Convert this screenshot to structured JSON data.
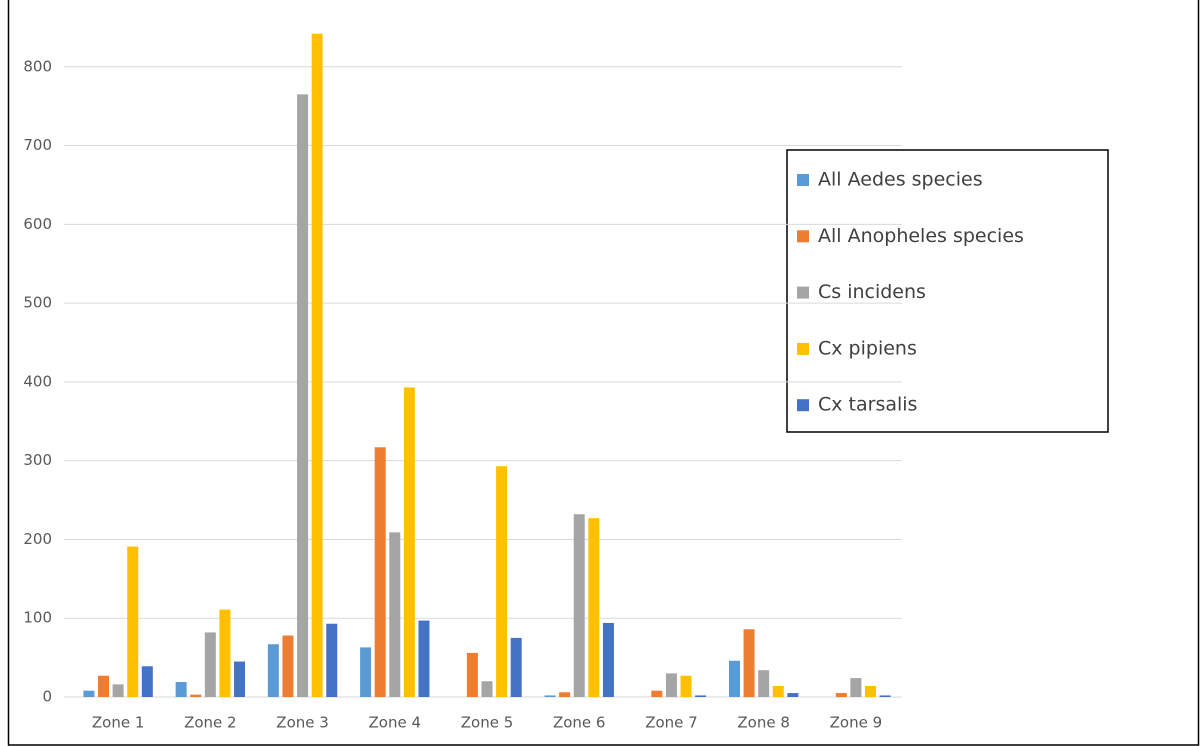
{
  "chart_data": {
    "type": "bar",
    "categories": [
      "Zone 1",
      "Zone 2",
      "Zone 3",
      "Zone 4",
      "Zone 5",
      "Zone 6",
      "Zone 7",
      "Zone 8",
      "Zone 9"
    ],
    "series": [
      {
        "name": "All Aedes species",
        "color": "#5b9bd5",
        "values": [
          8,
          19,
          67,
          63,
          0,
          2,
          0,
          46,
          0
        ]
      },
      {
        "name": "All Anopheles species",
        "color": "#ed7d31",
        "values": [
          27,
          3,
          78,
          317,
          56,
          6,
          8,
          86,
          5
        ]
      },
      {
        "name": "Cs incidens",
        "color": "#a5a5a5",
        "values": [
          16,
          82,
          765,
          209,
          20,
          232,
          30,
          34,
          24
        ]
      },
      {
        "name": "Cx pipiens",
        "color": "#ffc000",
        "values": [
          191,
          111,
          842,
          393,
          293,
          227,
          27,
          14,
          14
        ]
      },
      {
        "name": "Cx tarsalis",
        "color": "#4472c4",
        "values": [
          39,
          45,
          93,
          97,
          75,
          94,
          2,
          5,
          2
        ]
      }
    ],
    "ylim": [
      0,
      900
    ],
    "yticks": [
      0,
      100,
      200,
      300,
      400,
      500,
      600,
      700,
      800
    ],
    "grid": true,
    "legend": "right"
  }
}
